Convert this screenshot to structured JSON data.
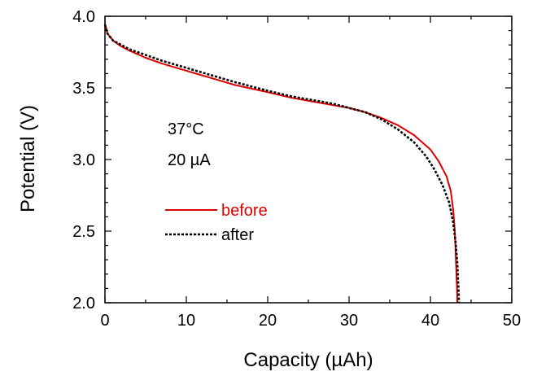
{
  "chart_data": {
    "type": "line",
    "title": "",
    "xlabel": "Capacity (µAh)",
    "ylabel": "Potential (V)",
    "xlim": [
      0,
      50
    ],
    "ylim": [
      2.0,
      4.0
    ],
    "xticks": [
      0,
      10,
      20,
      30,
      40,
      50
    ],
    "xtick_labels": [
      "0",
      "10",
      "20",
      "30",
      "40",
      "50"
    ],
    "yticks": [
      2.0,
      2.5,
      3.0,
      3.5,
      4.0
    ],
    "ytick_labels": [
      "2.0",
      "2.5",
      "3.0",
      "3.5",
      "4.0"
    ],
    "grid": false,
    "legend_position": "center-left",
    "annotations": [
      "37°C",
      "20 µA"
    ],
    "series": [
      {
        "name": "before",
        "color": "#dd0000",
        "style": "solid",
        "x": [
          0,
          0.3,
          1,
          2,
          3,
          5,
          7,
          10,
          13,
          16,
          20,
          23,
          26,
          28,
          30,
          32,
          34,
          36,
          38,
          40,
          41,
          42,
          42.5,
          42.8,
          43.0,
          43.1,
          43.2,
          43.3,
          43.3
        ],
        "y": [
          3.95,
          3.88,
          3.83,
          3.79,
          3.76,
          3.71,
          3.67,
          3.62,
          3.57,
          3.52,
          3.47,
          3.43,
          3.4,
          3.38,
          3.36,
          3.33,
          3.29,
          3.24,
          3.17,
          3.07,
          2.99,
          2.88,
          2.78,
          2.65,
          2.5,
          2.35,
          2.2,
          2.05,
          2.0
        ]
      },
      {
        "name": "after",
        "color": "#000000",
        "style": "dotted",
        "x": [
          0,
          0.3,
          1,
          2,
          3,
          5,
          7,
          10,
          13,
          16,
          20,
          23,
          26,
          28,
          30,
          32,
          34,
          36,
          38,
          39.5,
          40.5,
          41.5,
          42.3,
          42.8,
          43.1,
          43.3,
          43.4,
          43.5,
          43.5
        ],
        "y": [
          3.94,
          3.88,
          3.83,
          3.8,
          3.77,
          3.73,
          3.69,
          3.64,
          3.59,
          3.54,
          3.48,
          3.44,
          3.41,
          3.39,
          3.36,
          3.33,
          3.28,
          3.21,
          3.12,
          3.02,
          2.93,
          2.82,
          2.7,
          2.56,
          2.42,
          2.28,
          2.15,
          2.04,
          2.0
        ]
      }
    ]
  }
}
